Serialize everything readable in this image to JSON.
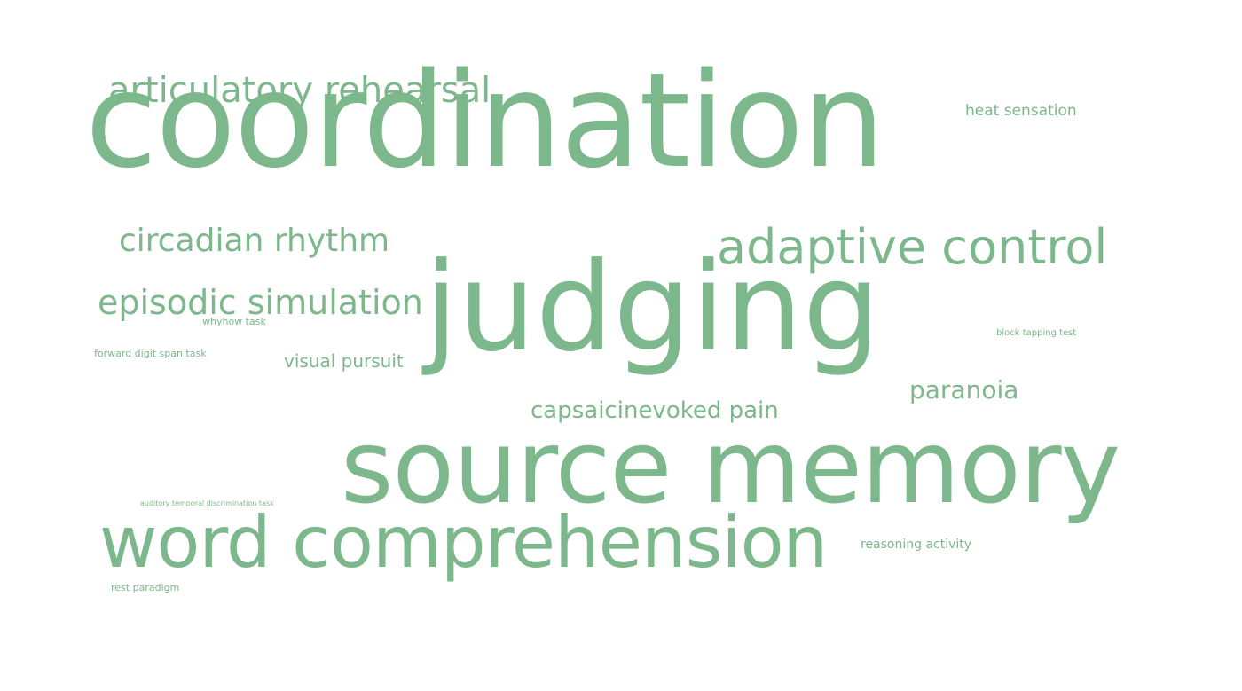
{
  "word_cloud": {
    "color": "#7db78c",
    "background": "#ffffff",
    "words": {
      "coordination": "coordination",
      "source_memory": "source memory",
      "judging": "judging",
      "word_comprehension": "word comprehension",
      "adaptive_control": "adaptive control",
      "articulatory_rehearsal": "articulatory rehearsal",
      "episodic_simulation": "episodic simulation",
      "circadian_rhythm": "circadian rhythm",
      "capsaicinevoked_pain": "capsaicinevoked pain",
      "paranoia": "paranoia",
      "visual_pursuit": "visual pursuit",
      "heat_sensation": "heat sensation",
      "reasoning_activity": "reasoning activity",
      "forward_digit_span_task": "forward digit span task",
      "whyhow_task": "whyhow task",
      "block_tapping_test": "block tapping test",
      "rest_paradigm": "rest paradigm",
      "auditory_temporal_discrimination_task": "auditory temporal discrimination task"
    }
  }
}
